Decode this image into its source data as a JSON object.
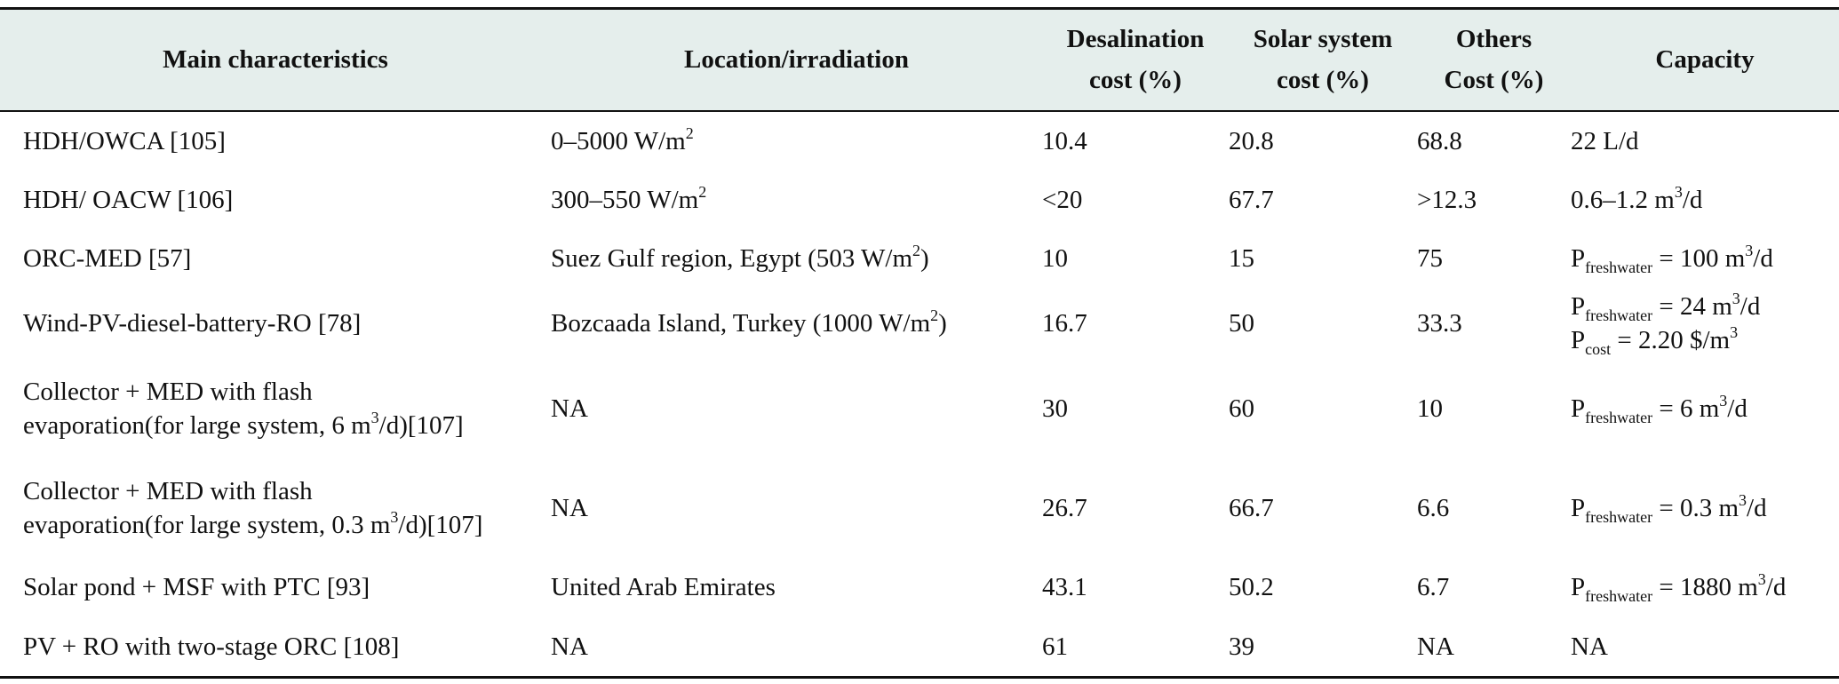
{
  "table": {
    "header": [
      [
        "Main characteristics"
      ],
      [
        "Location/irradiation"
      ],
      [
        "Desalination",
        "cost (%)"
      ],
      [
        "Solar system",
        "cost (%)"
      ],
      [
        "Others",
        "Cost (%)"
      ],
      [
        "Capacity"
      ]
    ],
    "rows": [
      [
        "HDH/OWCA [105]",
        [
          [
            "0–5000 W/m",
            {
              "sup": "2"
            }
          ]
        ],
        "10.4",
        "20.8",
        "68.8",
        "22 L/d"
      ],
      [
        "HDH/ OACW [106]",
        [
          [
            "300–550 W/m",
            {
              "sup": "2"
            }
          ]
        ],
        "<20",
        "67.7",
        ">12.3",
        [
          [
            "0.6–1.2 m",
            {
              "sup": "3"
            },
            "/d"
          ]
        ]
      ],
      [
        "ORC-MED [57]",
        [
          [
            "Suez Gulf region, Egypt (503 W/m",
            {
              "sup": "2"
            },
            ")"
          ]
        ],
        "10",
        "15",
        "75",
        [
          [
            "P",
            {
              "sub": "freshwater"
            },
            " = 100 m",
            {
              "sup": "3"
            },
            "/d"
          ]
        ]
      ],
      [
        "Wind-PV-diesel-battery-RO [78]",
        [
          [
            "Bozcaada Island, Turkey (1000 W/m",
            {
              "sup": "2"
            },
            ")"
          ]
        ],
        "16.7",
        "50",
        "33.3",
        [
          [
            "P",
            {
              "sub": "freshwater"
            },
            " = 24 m",
            {
              "sup": "3"
            },
            "/d"
          ],
          [
            "P",
            {
              "sub": "cost"
            },
            " = 2.20 $/m",
            {
              "sup": "3"
            }
          ]
        ]
      ],
      [
        [
          "Collector + MED with flash",
          [
            "evaporation(for large system, 6 m",
            {
              "sup": "3"
            },
            "/d)[107]"
          ]
        ],
        "NA",
        "30",
        "60",
        "10",
        [
          [
            "P",
            {
              "sub": "freshwater"
            },
            " = 6 m",
            {
              "sup": "3"
            },
            "/d"
          ]
        ]
      ],
      [
        [
          "Collector + MED with flash",
          [
            "evaporation(for large system, 0.3 m",
            {
              "sup": "3"
            },
            "/d)[107]"
          ]
        ],
        "NA",
        "26.7",
        "66.7",
        "6.6",
        [
          [
            "P",
            {
              "sub": "freshwater"
            },
            " = 0.3 m",
            {
              "sup": "3"
            },
            "/d"
          ]
        ]
      ],
      [
        "Solar pond + MSF with PTC [93]",
        "United Arab Emirates",
        "43.1",
        "50.2",
        "6.7",
        [
          [
            "P",
            {
              "sub": "freshwater"
            },
            " = 1880 m",
            {
              "sup": "3"
            },
            "/d"
          ]
        ]
      ],
      [
        "PV + RO with two-stage ORC [108]",
        "NA",
        "61",
        "39",
        "NA",
        "NA"
      ]
    ]
  }
}
